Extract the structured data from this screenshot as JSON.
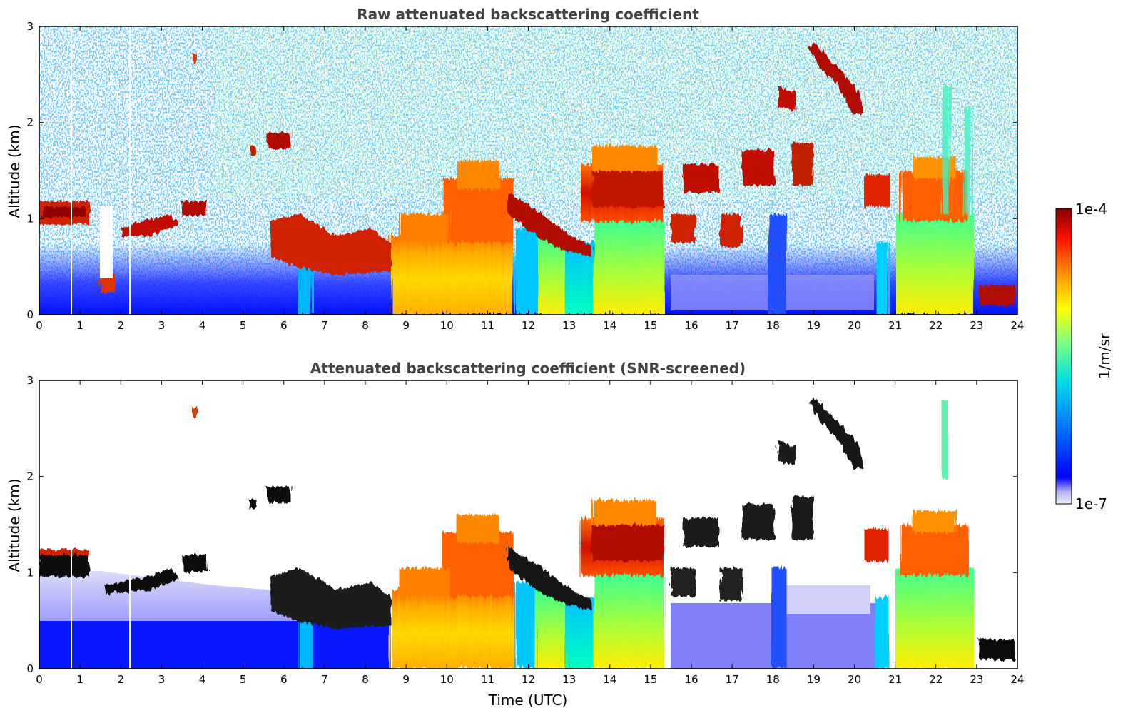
{
  "chart_data": [
    {
      "type": "heatmap",
      "title": "Raw attenuated backscattering coefficient",
      "xlabel": "",
      "ylabel": "Altitude (km)",
      "xlim": [
        0,
        24
      ],
      "ylim": [
        0,
        3
      ],
      "xticks": [
        "0",
        "1",
        "2",
        "3",
        "4",
        "5",
        "6",
        "7",
        "8",
        "9",
        "10",
        "11",
        "12",
        "13",
        "14",
        "15",
        "16",
        "17",
        "18",
        "19",
        "20",
        "21",
        "22",
        "23",
        "24"
      ],
      "yticks": [
        "0",
        "1",
        "2",
        "3"
      ],
      "features": [
        {
          "x": [
            0.0,
            1.2
          ],
          "y": [
            0.9,
            1.2
          ],
          "level": 1.0
        },
        {
          "x": [
            1.6,
            3.4
          ],
          "y": [
            0.8,
            1.0
          ],
          "level": 0.95
        },
        {
          "x": [
            3.5,
            4.1
          ],
          "y": [
            1.0,
            1.2
          ],
          "level": 0.92
        },
        {
          "x": [
            5.7,
            8.6
          ],
          "y": [
            0.45,
            1.0
          ],
          "level": 0.85
        },
        {
          "x": [
            8.6,
            11.6
          ],
          "y": [
            0.0,
            0.8
          ],
          "level": 0.65
        },
        {
          "x": [
            9.0,
            11.6
          ],
          "y": [
            0.8,
            1.6
          ],
          "level": 0.82
        },
        {
          "x": [
            11.6,
            13.0
          ],
          "y": [
            0.5,
            1.1
          ],
          "level": 0.9
        },
        {
          "x": [
            13.3,
            15.2
          ],
          "y": [
            1.0,
            1.8
          ],
          "level": 0.88
        },
        {
          "x": [
            15.8,
            16.8
          ],
          "y": [
            1.2,
            1.5
          ],
          "level": 0.95
        },
        {
          "x": [
            17.3,
            18.3
          ],
          "y": [
            1.3,
            1.7
          ],
          "level": 0.95
        },
        {
          "x": [
            18.2,
            20.5
          ],
          "y": [
            2.0,
            3.0
          ],
          "level": 0.95
        },
        {
          "x": [
            20.4,
            23.3
          ],
          "y": [
            0.0,
            1.5
          ],
          "level": 0.7
        },
        {
          "x": [
            23.0,
            24.0
          ],
          "y": [
            0.0,
            0.3
          ],
          "level": 0.95
        }
      ]
    },
    {
      "type": "heatmap",
      "title": "Attenuated backscattering coefficient (SNR-screened)",
      "xlabel": "Time (UTC)",
      "ylabel": "Altitude (km)",
      "xlim": [
        0,
        24
      ],
      "ylim": [
        0,
        3
      ],
      "xticks": [
        "0",
        "1",
        "2",
        "3",
        "4",
        "5",
        "6",
        "7",
        "8",
        "9",
        "10",
        "11",
        "12",
        "13",
        "14",
        "15",
        "16",
        "17",
        "18",
        "19",
        "20",
        "21",
        "22",
        "23",
        "24"
      ],
      "yticks": [
        "0",
        "1",
        "2",
        "3"
      ]
    }
  ],
  "colorbar": {
    "label": "1/m/sr",
    "max_label": "1e-4",
    "min_label": "1e-7",
    "colormap": "jet",
    "colors": [
      "#e8e8f8",
      "#0000ff",
      "#00aaff",
      "#00ffaa",
      "#ffff00",
      "#ff8800",
      "#ff0000",
      "#800000"
    ]
  }
}
